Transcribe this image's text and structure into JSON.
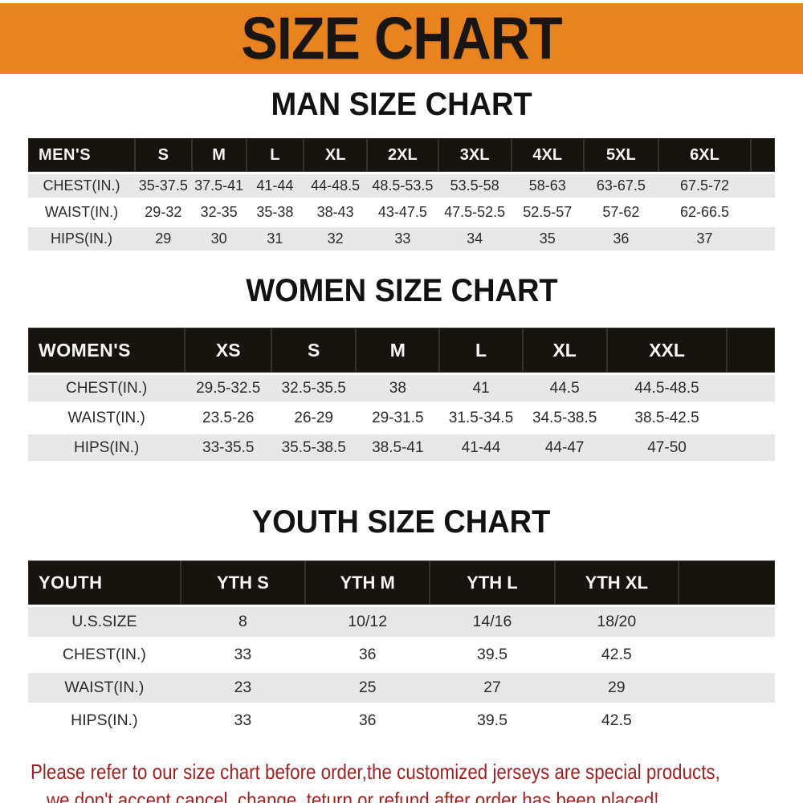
{
  "banner": {
    "title": "SIZE CHART"
  },
  "sections": [
    {
      "title": "MAN SIZE CHART",
      "header_label": "MEN'S",
      "columns": [
        "S",
        "M",
        "L",
        "XL",
        "2XL",
        "3XL",
        "4XL",
        "5XL",
        "6XL"
      ],
      "rows": [
        {
          "label": "CHEST(IN.)",
          "values": [
            "35-37.5",
            "37.5-41",
            "41-44",
            "44-48.5",
            "48.5-53.5",
            "53.5-58",
            "58-63",
            "63-67.5",
            "67.5-72"
          ]
        },
        {
          "label": "WAIST(IN.)",
          "values": [
            "29-32",
            "32-35",
            "35-38",
            "38-43",
            "43-47.5",
            "47.5-52.5",
            "52.5-57",
            "57-62",
            "62-66.5"
          ]
        },
        {
          "label": "HIPS(IN.)",
          "values": [
            "29",
            "30",
            "31",
            "32",
            "33",
            "34",
            "35",
            "36",
            "37"
          ]
        }
      ]
    },
    {
      "title": "WOMEN SIZE CHART",
      "header_label": "WOMEN'S",
      "columns": [
        "XS",
        "S",
        "M",
        "L",
        "XL",
        "XXL"
      ],
      "rows": [
        {
          "label": "CHEST(IN.)",
          "values": [
            "29.5-32.5",
            "32.5-35.5",
            "38",
            "41",
            "44.5",
            "44.5-48.5"
          ]
        },
        {
          "label": "WAIST(IN.)",
          "values": [
            "23.5-26",
            "26-29",
            "29-31.5",
            "31.5-34.5",
            "34.5-38.5",
            "38.5-42.5"
          ]
        },
        {
          "label": "HIPS(IN.)",
          "values": [
            "33-35.5",
            "35.5-38.5",
            "38.5-41",
            "41-44",
            "44-47",
            "47-50"
          ]
        }
      ]
    },
    {
      "title": "YOUTH SIZE CHART",
      "header_label": "YOUTH",
      "columns": [
        "YTH S",
        "YTH M",
        "YTH L",
        "YTH XL"
      ],
      "rows": [
        {
          "label": "U.S.SIZE",
          "values": [
            "8",
            "10/12",
            "14/16",
            "18/20"
          ]
        },
        {
          "label": "CHEST(IN.)",
          "values": [
            "33",
            "36",
            "39.5",
            "42.5"
          ]
        },
        {
          "label": "WAIST(IN.)",
          "values": [
            "23",
            "25",
            "27",
            "29"
          ]
        },
        {
          "label": "HIPS(IN.)",
          "values": [
            "33",
            "36",
            "39.5",
            "42.5"
          ]
        }
      ]
    }
  ],
  "disclaimer": {
    "line1": "Please refer to our size chart before order,the customized jerseys are special products,",
    "line2": "we don't accept cancel, change, teturn or refund after order has been placed!"
  },
  "theme": {
    "banner_bg": "#E8831F",
    "banner_text": "#181512",
    "table_header_bg": "#17130E",
    "table_header_text": "#F7F7F7",
    "row_alt_bg": "#E7E7E7",
    "body_text": "#2B2B2B",
    "disclaimer_text": "#9B2423"
  }
}
